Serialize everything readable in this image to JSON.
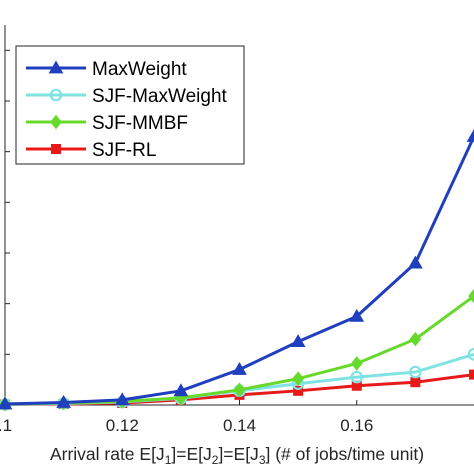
{
  "chart_data": {
    "type": "line",
    "xlabel_parts": [
      {
        "t": "Arrival rate E[J"
      },
      {
        "t": "1",
        "sub": true
      },
      {
        "t": "]=E[J"
      },
      {
        "t": "2",
        "sub": true
      },
      {
        "t": "]=E[J"
      },
      {
        "t": "3",
        "sub": true
      },
      {
        "t": "] (# of jobs/time unit)"
      }
    ],
    "x_ticks": [
      {
        "value": 0.1,
        "label": ".1"
      },
      {
        "value": 0.12,
        "label": "0.12"
      },
      {
        "value": 0.14,
        "label": "0.14"
      },
      {
        "value": 0.16,
        "label": "0.16"
      }
    ],
    "xlim": [
      0.1,
      0.18
    ],
    "ylim": [
      0,
      7.5
    ],
    "y_ticks": [
      0,
      1,
      2,
      3,
      4,
      5,
      6,
      7
    ],
    "grid": false,
    "legend_position": "top-left",
    "x": [
      0.1,
      0.11,
      0.12,
      0.13,
      0.14,
      0.15,
      0.16,
      0.17,
      0.18
    ],
    "series": [
      {
        "name": "MaxWeight",
        "color": "#1f3fbf",
        "marker": "triangle",
        "values": [
          0.02,
          0.05,
          0.1,
          0.28,
          0.7,
          1.25,
          1.75,
          2.8,
          5.3
        ]
      },
      {
        "name": "SJF-MaxWeight",
        "color": "#7fe3e3",
        "marker": "circle",
        "values": [
          0.01,
          0.03,
          0.06,
          0.13,
          0.28,
          0.42,
          0.55,
          0.65,
          1.0
        ]
      },
      {
        "name": "SJF-MMBF",
        "color": "#66d92a",
        "marker": "diamond",
        "values": [
          0.02,
          0.04,
          0.07,
          0.14,
          0.3,
          0.52,
          0.82,
          1.3,
          2.15
        ]
      },
      {
        "name": "SJF-RL",
        "color": "#e81919",
        "marker": "square",
        "values": [
          0.01,
          0.02,
          0.04,
          0.1,
          0.2,
          0.28,
          0.38,
          0.45,
          0.6
        ]
      }
    ]
  }
}
